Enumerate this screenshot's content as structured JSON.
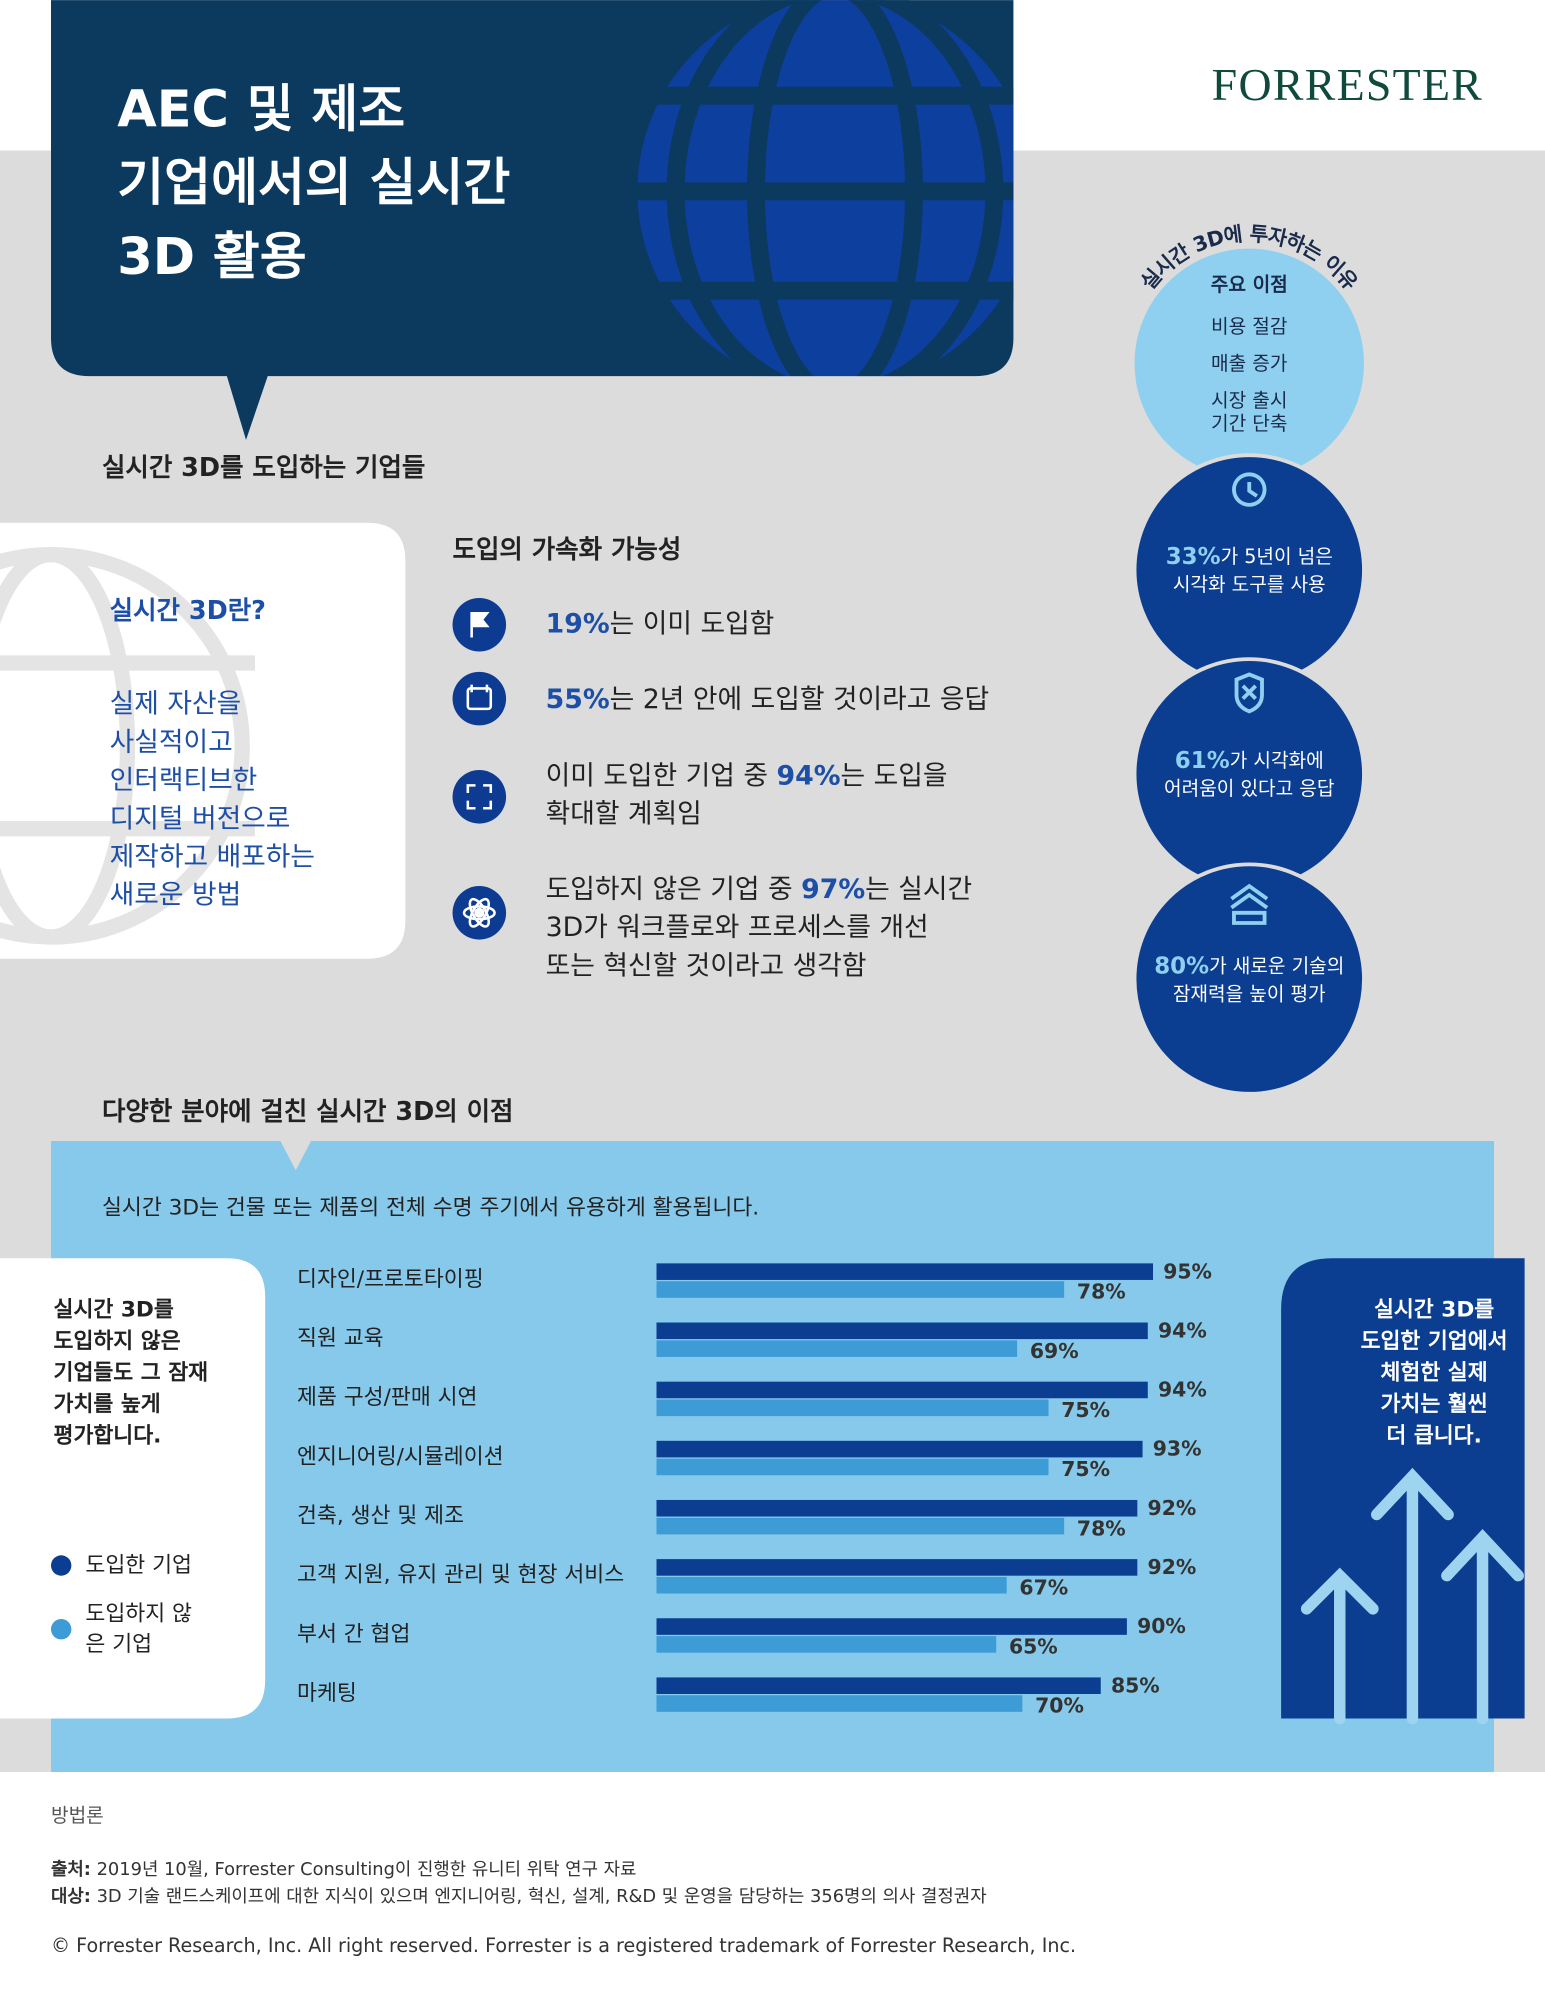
{
  "header": {
    "title_lines": [
      "AEC 및 제조",
      "기업에서의 실시간",
      "3D 활용"
    ],
    "logo": "FORRESTER"
  },
  "adopters": {
    "heading": "실시간 3D를 도입하는 기업들",
    "what_is": {
      "title": "실시간 3D란?",
      "lines": [
        "실제 자산을",
        "사실적이고",
        "인터랙티브한",
        "디지털 버전으로",
        "제작하고 배포하는",
        "새로운 방법"
      ]
    },
    "acceleration": {
      "title": "도입의 가속화 가능성",
      "items": [
        {
          "lines": [
            [
              {
                "text": "19%",
                "strong": true
              },
              {
                "text": "는 이미 도입함"
              }
            ]
          ]
        },
        {
          "lines": [
            [
              {
                "text": "55%",
                "strong": true
              },
              {
                "text": "는 2년 안에 도입할 것이라고 응답"
              }
            ]
          ]
        },
        {
          "lines": [
            [
              {
                "text": "이미 도입한 기업 중 "
              },
              {
                "text": "94%",
                "strong": true
              },
              {
                "text": "는 도입을"
              }
            ],
            [
              {
                "text": "확대할 계획임"
              }
            ]
          ]
        },
        {
          "lines": [
            [
              {
                "text": "도입하지 않은 기업 중 "
              },
              {
                "text": "97%",
                "strong": true
              },
              {
                "text": "는 실시간"
              }
            ],
            [
              {
                "text": "3D가 워크플로와 프로세스를 개선"
              }
            ],
            [
              {
                "text": "또는 혁신할 것이라고 생각함"
              }
            ]
          ]
        }
      ]
    }
  },
  "reasons": {
    "arc_title": "실시간 3D에 투자하는 이유",
    "benefits_title": "주요 이점",
    "benefits": [
      [
        "비용 절감"
      ],
      [
        "매출 증가"
      ],
      [
        "시장 출시",
        "기간 단축"
      ]
    ],
    "stats": [
      {
        "lines": [
          [
            {
              "text": "33%",
              "strong": true
            },
            {
              "text": "가 5년이 넘은"
            }
          ],
          [
            {
              "text": "시각화 도구를 사용"
            }
          ]
        ]
      },
      {
        "lines": [
          [
            {
              "text": "61%",
              "strong": true
            },
            {
              "text": "가 시각화에"
            }
          ],
          [
            {
              "text": "어려움이 있다고 응답"
            }
          ]
        ]
      },
      {
        "lines": [
          [
            {
              "text": "80%",
              "strong": true
            },
            {
              "text": "가 새로운 기술의"
            }
          ],
          [
            {
              "text": "잠재력을 높이 평가"
            }
          ]
        ]
      }
    ]
  },
  "benefits_section": {
    "heading": "다양한 분야에 걸친 실시간 3D의 이점",
    "note": "실시간 3D는 건물 또는 제품의 전체 수명 주기에서 유용하게 활용됩니다.",
    "left_box": [
      "실시간 3D를",
      "도입하지 않은",
      "기업들도 그 잠재",
      "가치를 높게",
      "평가합니다."
    ],
    "right_box": [
      "실시간 3D를",
      "도입한 기업에서",
      "체험한 실제",
      "가치는 훨씬",
      "더 큽니다."
    ]
  },
  "chart_data": {
    "type": "bar",
    "orientation": "horizontal",
    "categories": [
      "디자인/프로토타이핑",
      "직원 교육",
      "제품 구성/판매 시연",
      "엔지니어링/시뮬레이션",
      "건축, 생산 및 제조",
      "고객 지원, 유지 관리 및 현장 서비스",
      "부서 간 협업",
      "마케팅"
    ],
    "series": [
      {
        "name": "도입한 기업",
        "color": "#0b3d91",
        "values": [
          95,
          94,
          94,
          93,
          92,
          92,
          90,
          85
        ],
        "value_labels": [
          "95%",
          "94%",
          "94%",
          "93%",
          "92%",
          "92%",
          "90%",
          "85%"
        ]
      },
      {
        "name": "도입하지 않은 기업",
        "color": "#3d9bd6",
        "values": [
          78,
          69,
          75,
          75,
          78,
          67,
          65,
          70
        ],
        "value_labels": [
          "78%",
          "69%",
          "75%",
          "75%",
          "78%",
          "67%",
          "65%",
          "70%"
        ]
      }
    ]
  },
  "footer": {
    "methodology": "방법론",
    "source": [
      {
        "text": "출처:",
        "strong": true
      },
      {
        "text": " 2019년 10월, Forrester Consulting이 진행한 유니티 위탁 연구 자료"
      }
    ],
    "audience": [
      {
        "text": "대상:",
        "strong": true
      },
      {
        "text": " 3D 기술 랜드스케이프에 대한 지식이 있으며 엔지니어링, 혁신, 설계, R&D 및 운영을 담당하는 356명의 의사 결정권자"
      }
    ],
    "copyright": "© Forrester Research, Inc. All right reserved. Forrester is a registered trademark of Forrester Research, Inc."
  }
}
